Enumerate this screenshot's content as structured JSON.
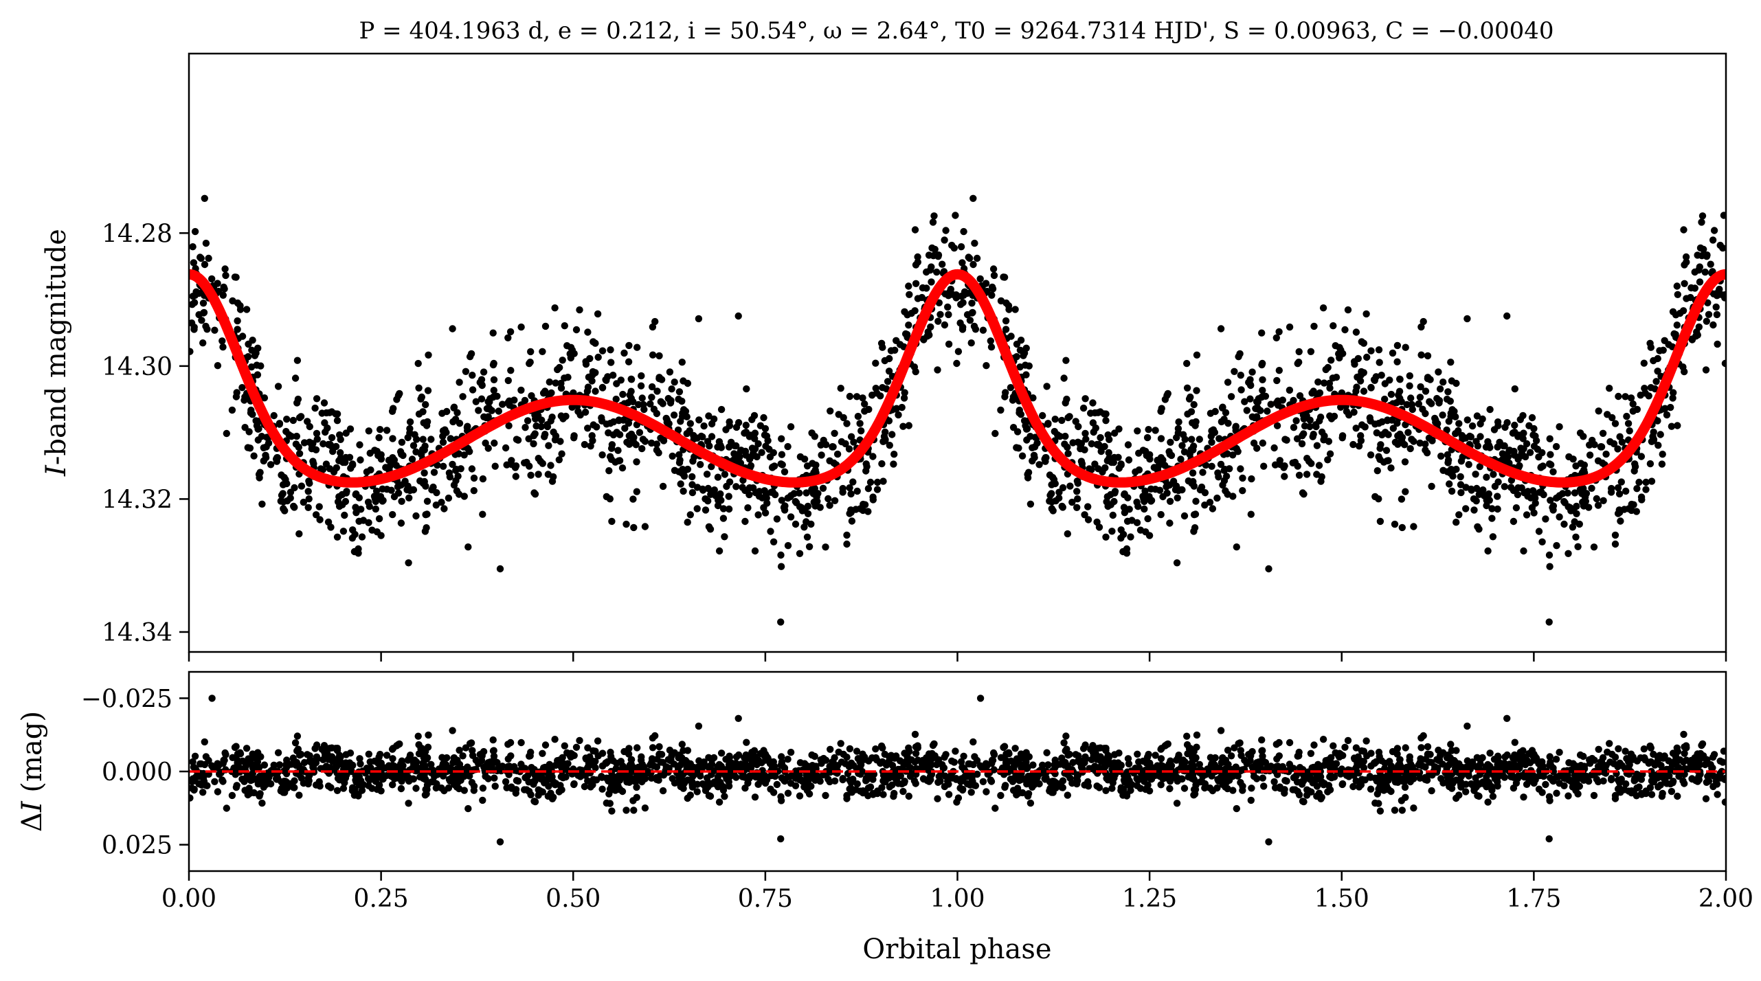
{
  "chart_data": [
    {
      "type": "scatter",
      "title": "P = 404.1963 d, e = 0.212, i = 50.54°, ω = 2.64°, T0 = 9264.7314 HJD', S = 0.00963, C = −0.00040",
      "title_parts": {
        "P": "404.1963 d",
        "e": "0.212",
        "i": "50.54°",
        "omega": "2.64°",
        "T0": "9264.7314 HJD'",
        "S": "0.00963",
        "C": "−0.00040"
      },
      "xlabel": "",
      "ylabel": "I-band magnitude",
      "ylabel_italic": "I",
      "ylabel_rest": "-band magnitude",
      "xlim": [
        0.0,
        2.0
      ],
      "ylim": [
        14.343,
        14.253
      ],
      "y_inverted": true,
      "yticks": [
        14.28,
        14.3,
        14.32,
        14.34
      ],
      "ytick_labels": [
        "14.28",
        "14.30",
        "14.32",
        "14.34"
      ],
      "series": [
        {
          "kind": "scatter",
          "color": "#000000",
          "model": {
            "base": 14.3132,
            "ecc_peak_height": -0.0275,
            "ecc_peak_width": 0.062,
            "sine_amp": 0.0059
          },
          "points_per_cycle": 1300,
          "scatter_sigma": 0.0062,
          "outliers": [
            [
              0.03,
              14.2885
            ],
            [
              0.975,
              14.2835
            ],
            [
              0.405,
              14.3305
            ],
            [
              0.77,
              14.3385
            ]
          ]
        },
        {
          "kind": "line",
          "color": "#ff0000",
          "model": "same as scatter model"
        }
      ]
    },
    {
      "type": "scatter",
      "xlabel": "Orbital phase",
      "ylabel": "ΔI (mag)",
      "ylabel_delta": "Δ",
      "ylabel_italic": "I",
      "ylabel_rest": " (mag)",
      "xlim": [
        0.0,
        2.0
      ],
      "ylim": [
        0.034,
        -0.034
      ],
      "y_inverted": true,
      "xticks": [
        0.0,
        0.25,
        0.5,
        0.75,
        1.0,
        1.25,
        1.5,
        1.75,
        2.0
      ],
      "xtick_labels": [
        "0.00",
        "0.25",
        "0.50",
        "0.75",
        "1.00",
        "1.25",
        "1.50",
        "1.75",
        "2.00"
      ],
      "yticks": [
        -0.025,
        0.0,
        0.025
      ],
      "ytick_labels": [
        "−0.025",
        "0.000",
        "0.025"
      ],
      "series": [
        {
          "kind": "scatter",
          "color": "#000000",
          "residual_sigma": 0.0062,
          "outliers": [
            [
              0.03,
              -0.025
            ],
            [
              0.405,
              0.024
            ],
            [
              0.77,
              0.023
            ]
          ]
        },
        {
          "kind": "hline",
          "y": 0.0,
          "color": "#ff0000",
          "dashed": true
        }
      ]
    }
  ]
}
